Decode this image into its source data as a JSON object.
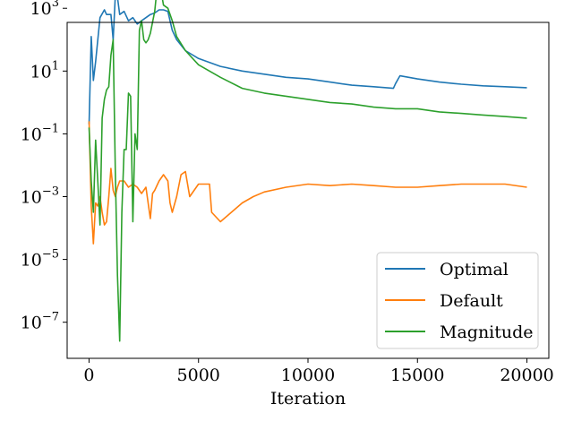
{
  "chart_data": {
    "type": "line",
    "title": "",
    "xlabel": "Iteration",
    "ylabel": "",
    "y_scale": "log",
    "xlim": [
      -1000,
      21000
    ],
    "ylim_log10": [
      -8.15,
      2.55
    ],
    "x_ticks": [
      0,
      5000,
      10000,
      15000,
      20000
    ],
    "x_tick_labels": [
      "0",
      "5000",
      "10000",
      "15000",
      "20000"
    ],
    "y_ticks_log10": [
      3,
      1,
      -1,
      -3,
      -5,
      -7
    ],
    "y_tick_labels": [
      {
        "base": "10",
        "exp": "3"
      },
      {
        "base": "10",
        "exp": "1"
      },
      {
        "base": "10",
        "exp": "−1"
      },
      {
        "base": "10",
        "exp": "−3"
      },
      {
        "base": "10",
        "exp": "−5"
      },
      {
        "base": "10",
        "exp": "−7"
      }
    ],
    "grid": false,
    "legend_position": "lower-right",
    "series": [
      {
        "name": "Optimal",
        "color": "#1f77b4",
        "points": [
          [
            0,
            -0.7
          ],
          [
            100,
            2.1
          ],
          [
            200,
            0.7
          ],
          [
            300,
            1.3
          ],
          [
            500,
            2.7
          ],
          [
            700,
            2.95
          ],
          [
            800,
            2.8
          ],
          [
            1000,
            2.8
          ],
          [
            1100,
            2.0
          ],
          [
            1200,
            3.4
          ],
          [
            1300,
            3.35
          ],
          [
            1400,
            2.8
          ],
          [
            1600,
            2.9
          ],
          [
            1800,
            2.6
          ],
          [
            2000,
            2.7
          ],
          [
            2200,
            2.5
          ],
          [
            2400,
            2.6
          ],
          [
            2600,
            2.7
          ],
          [
            2800,
            2.8
          ],
          [
            3000,
            2.85
          ],
          [
            3200,
            2.95
          ],
          [
            3400,
            2.95
          ],
          [
            3600,
            2.9
          ],
          [
            3800,
            2.3
          ],
          [
            4000,
            2.0
          ],
          [
            4400,
            1.65
          ],
          [
            5000,
            1.4
          ],
          [
            6000,
            1.15
          ],
          [
            7000,
            1.0
          ],
          [
            8000,
            0.9
          ],
          [
            9000,
            0.8
          ],
          [
            10000,
            0.75
          ],
          [
            11000,
            0.65
          ],
          [
            12000,
            0.55
          ],
          [
            13000,
            0.5
          ],
          [
            13900,
            0.45
          ],
          [
            14000,
            0.6
          ],
          [
            14200,
            0.85
          ],
          [
            15000,
            0.75
          ],
          [
            16000,
            0.65
          ],
          [
            17000,
            0.58
          ],
          [
            18000,
            0.53
          ],
          [
            19000,
            0.5
          ],
          [
            20000,
            0.47
          ]
        ]
      },
      {
        "name": "Default",
        "color": "#ff7f0e",
        "points": [
          [
            0,
            -0.6
          ],
          [
            100,
            -3.3
          ],
          [
            200,
            -4.5
          ],
          [
            300,
            -3.2
          ],
          [
            400,
            -3.3
          ],
          [
            500,
            -3.0
          ],
          [
            600,
            -3.5
          ],
          [
            700,
            -3.9
          ],
          [
            800,
            -3.8
          ],
          [
            900,
            -3.0
          ],
          [
            1000,
            -2.1
          ],
          [
            1100,
            -2.8
          ],
          [
            1200,
            -3.0
          ],
          [
            1300,
            -2.7
          ],
          [
            1400,
            -2.5
          ],
          [
            1600,
            -2.5
          ],
          [
            1800,
            -2.7
          ],
          [
            2000,
            -2.6
          ],
          [
            2200,
            -2.7
          ],
          [
            2400,
            -2.9
          ],
          [
            2600,
            -2.7
          ],
          [
            2800,
            -3.7
          ],
          [
            2900,
            -2.9
          ],
          [
            3000,
            -2.8
          ],
          [
            3200,
            -2.5
          ],
          [
            3400,
            -2.3
          ],
          [
            3600,
            -2.5
          ],
          [
            3700,
            -3.2
          ],
          [
            3800,
            -3.5
          ],
          [
            4000,
            -3.0
          ],
          [
            4200,
            -2.3
          ],
          [
            4400,
            -2.2
          ],
          [
            4600,
            -3.0
          ],
          [
            4800,
            -2.8
          ],
          [
            5000,
            -2.6
          ],
          [
            5500,
            -2.6
          ],
          [
            5600,
            -3.5
          ],
          [
            6000,
            -3.8
          ],
          [
            6500,
            -3.5
          ],
          [
            7000,
            -3.2
          ],
          [
            7500,
            -3.0
          ],
          [
            8000,
            -2.85
          ],
          [
            9000,
            -2.7
          ],
          [
            10000,
            -2.6
          ],
          [
            11000,
            -2.65
          ],
          [
            12000,
            -2.6
          ],
          [
            13000,
            -2.65
          ],
          [
            14000,
            -2.7
          ],
          [
            15000,
            -2.7
          ],
          [
            16000,
            -2.65
          ],
          [
            17000,
            -2.6
          ],
          [
            18000,
            -2.6
          ],
          [
            19000,
            -2.6
          ],
          [
            20000,
            -2.7
          ]
        ]
      },
      {
        "name": "Magnitude",
        "color": "#2ca02c",
        "points": [
          [
            0,
            -0.8
          ],
          [
            100,
            -2.5
          ],
          [
            200,
            -3.5
          ],
          [
            300,
            -1.2
          ],
          [
            400,
            -2.5
          ],
          [
            500,
            -3.9
          ],
          [
            600,
            -0.5
          ],
          [
            700,
            0.1
          ],
          [
            800,
            0.4
          ],
          [
            900,
            0.5
          ],
          [
            1000,
            1.5
          ],
          [
            1100,
            2.0
          ],
          [
            1200,
            -2.2
          ],
          [
            1300,
            -5.5
          ],
          [
            1400,
            -7.6
          ],
          [
            1500,
            -3.5
          ],
          [
            1600,
            -1.5
          ],
          [
            1700,
            -1.5
          ],
          [
            1800,
            0.3
          ],
          [
            1900,
            0.2
          ],
          [
            2000,
            -3.8
          ],
          [
            2100,
            -1.0
          ],
          [
            2200,
            -1.5
          ],
          [
            2300,
            2.3
          ],
          [
            2400,
            2.6
          ],
          [
            2500,
            2.0
          ],
          [
            2600,
            1.9
          ],
          [
            2700,
            2.0
          ],
          [
            2800,
            2.2
          ],
          [
            3000,
            2.9
          ],
          [
            3100,
            3.6
          ],
          [
            3200,
            4.0
          ],
          [
            3300,
            3.5
          ],
          [
            3400,
            3.1
          ],
          [
            3600,
            3.0
          ],
          [
            3800,
            2.6
          ],
          [
            4000,
            2.1
          ],
          [
            4400,
            1.65
          ],
          [
            5000,
            1.2
          ],
          [
            6000,
            0.8
          ],
          [
            7000,
            0.45
          ],
          [
            8000,
            0.3
          ],
          [
            9000,
            0.2
          ],
          [
            10000,
            0.1
          ],
          [
            11000,
            0.0
          ],
          [
            12000,
            -0.05
          ],
          [
            13000,
            -0.15
          ],
          [
            14000,
            -0.2
          ],
          [
            15000,
            -0.2
          ],
          [
            16000,
            -0.3
          ],
          [
            17000,
            -0.35
          ],
          [
            18000,
            -0.4
          ],
          [
            19000,
            -0.45
          ],
          [
            20000,
            -0.5
          ]
        ]
      }
    ]
  }
}
